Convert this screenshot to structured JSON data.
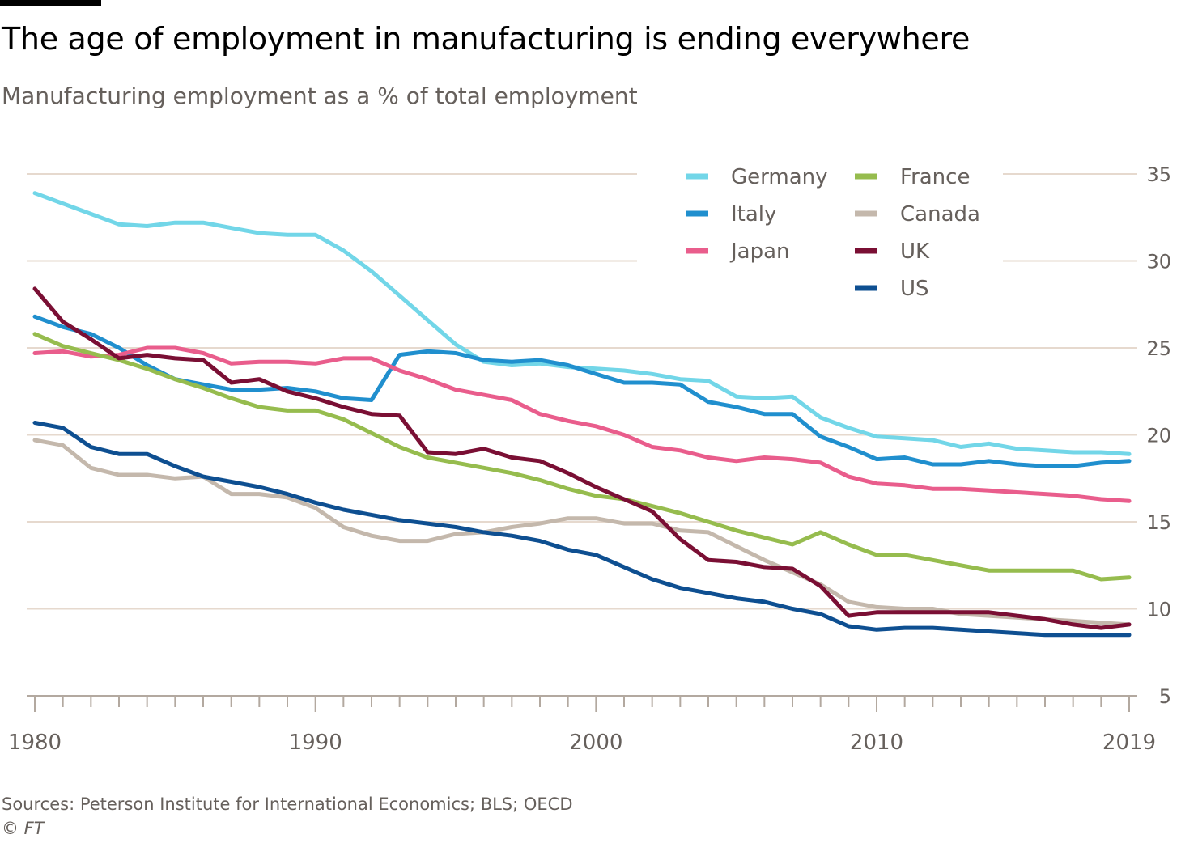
{
  "title": "The age of employment in manufacturing is ending everywhere",
  "subtitle": "Manufacturing employment as a % of total employment",
  "source": "Sources: Peterson Institute for International Economics; BLS; OECD",
  "credit": "© FT",
  "chart_data": {
    "type": "line",
    "x": [
      1980,
      1981,
      1982,
      1983,
      1984,
      1985,
      1986,
      1987,
      1988,
      1989,
      1990,
      1991,
      1992,
      1993,
      1994,
      1995,
      1996,
      1997,
      1998,
      1999,
      2000,
      2001,
      2002,
      2003,
      2004,
      2005,
      2006,
      2007,
      2008,
      2009,
      2010,
      2011,
      2012,
      2013,
      2014,
      2015,
      2016,
      2017,
      2018,
      2019
    ],
    "x_ticks": [
      1980,
      1990,
      2000,
      2010,
      2019
    ],
    "y_ticks": [
      5,
      10,
      15,
      20,
      25,
      30,
      35
    ],
    "ylim": [
      5,
      35
    ],
    "y_axis_side": "right",
    "grid": true,
    "legend_position": "top-right",
    "series": [
      {
        "name": "Germany",
        "color": "#72d6e8",
        "values": [
          33.9,
          33.3,
          32.7,
          32.1,
          32.0,
          32.2,
          32.2,
          31.9,
          31.6,
          31.5,
          31.5,
          30.6,
          29.4,
          28.0,
          26.6,
          25.2,
          24.2,
          24.0,
          24.1,
          23.9,
          23.8,
          23.7,
          23.5,
          23.2,
          23.1,
          22.2,
          22.1,
          22.2,
          21.0,
          20.4,
          19.9,
          19.8,
          19.7,
          19.3,
          19.5,
          19.2,
          19.1,
          19.0,
          19.0,
          18.9
        ]
      },
      {
        "name": "Italy",
        "color": "#208fce",
        "values": [
          26.8,
          26.2,
          25.8,
          25.0,
          24.0,
          23.2,
          22.9,
          22.6,
          22.6,
          22.7,
          22.5,
          22.1,
          22.0,
          24.6,
          24.8,
          24.7,
          24.3,
          24.2,
          24.3,
          24.0,
          23.5,
          23.0,
          23.0,
          22.9,
          21.9,
          21.6,
          21.2,
          21.2,
          19.9,
          19.3,
          18.6,
          18.7,
          18.3,
          18.3,
          18.5,
          18.3,
          18.2,
          18.2,
          18.4,
          18.5
        ]
      },
      {
        "name": "Japan",
        "color": "#e95d8c",
        "values": [
          24.7,
          24.8,
          24.5,
          24.6,
          25.0,
          25.0,
          24.7,
          24.1,
          24.2,
          24.2,
          24.1,
          24.4,
          24.4,
          23.7,
          23.2,
          22.6,
          22.3,
          22.0,
          21.2,
          20.8,
          20.5,
          20.0,
          19.3,
          19.1,
          18.7,
          18.5,
          18.7,
          18.6,
          18.4,
          17.6,
          17.2,
          17.1,
          16.9,
          16.9,
          16.8,
          16.7,
          16.6,
          16.5,
          16.3,
          16.2
        ]
      },
      {
        "name": "France",
        "color": "#96bc4e",
        "values": [
          25.8,
          25.1,
          24.7,
          24.3,
          23.8,
          23.2,
          22.7,
          22.1,
          21.6,
          21.4,
          21.4,
          20.9,
          20.1,
          19.3,
          18.7,
          18.4,
          18.1,
          17.8,
          17.4,
          16.9,
          16.5,
          16.3,
          15.9,
          15.5,
          15.0,
          14.5,
          14.1,
          13.7,
          14.4,
          13.7,
          13.1,
          13.1,
          12.8,
          12.5,
          12.2,
          12.2,
          12.2,
          12.2,
          11.7,
          11.8
        ]
      },
      {
        "name": "Canada",
        "color": "#c4b8ac",
        "values": [
          19.7,
          19.4,
          18.1,
          17.7,
          17.7,
          17.5,
          17.6,
          16.6,
          16.6,
          16.4,
          15.8,
          14.7,
          14.2,
          13.9,
          13.9,
          14.3,
          14.4,
          14.7,
          14.9,
          15.2,
          15.2,
          14.9,
          14.9,
          14.5,
          14.4,
          13.6,
          12.8,
          12.1,
          11.4,
          10.4,
          10.1,
          10.0,
          10.0,
          9.7,
          9.6,
          9.5,
          9.4,
          9.3,
          9.2,
          9.1
        ]
      },
      {
        "name": "UK",
        "color": "#7a0f34",
        "values": [
          28.4,
          26.5,
          25.5,
          24.4,
          24.6,
          24.4,
          24.3,
          23.0,
          23.2,
          22.5,
          22.1,
          21.6,
          21.2,
          21.1,
          19.0,
          18.9,
          19.2,
          18.7,
          18.5,
          17.8,
          17.0,
          16.3,
          15.6,
          14.0,
          12.8,
          12.7,
          12.4,
          12.3,
          11.3,
          9.6,
          9.8,
          9.8,
          9.8,
          9.8,
          9.8,
          9.6,
          9.4,
          9.1,
          8.9,
          9.1
        ]
      },
      {
        "name": "US",
        "color": "#0e4f91",
        "values": [
          20.7,
          20.4,
          19.3,
          18.9,
          18.9,
          18.2,
          17.6,
          17.3,
          17.0,
          16.6,
          16.1,
          15.7,
          15.4,
          15.1,
          14.9,
          14.7,
          14.4,
          14.2,
          13.9,
          13.4,
          13.1,
          12.4,
          11.7,
          11.2,
          10.9,
          10.6,
          10.4,
          10.0,
          9.7,
          9.0,
          8.8,
          8.9,
          8.9,
          8.8,
          8.7,
          8.6,
          8.5,
          8.5,
          8.5,
          8.5
        ]
      }
    ]
  }
}
